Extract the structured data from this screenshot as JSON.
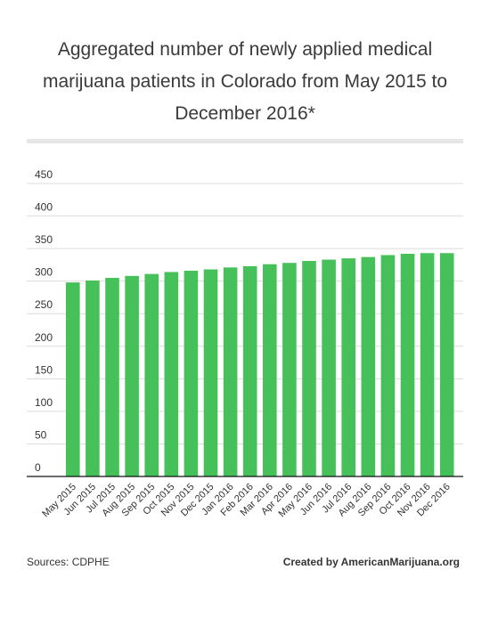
{
  "title": "Aggregated number of newly applied medical marijuana patients in Colorado from May 2015 to December 2016*",
  "footer": {
    "source": "Sources: CDPHE",
    "credit": "Created by AmericanMarijuana.org"
  },
  "colors": {
    "bar": "#46c159",
    "grid": "#dcdcdc",
    "axis": "#111111",
    "text": "#333333"
  },
  "chart_data": {
    "type": "bar",
    "categories": [
      "May 2015",
      "Jun 2015",
      "Jul 2015",
      "Aug 2015",
      "Sep 2015",
      "Oct 2015",
      "Nov 2015",
      "Dec 2015",
      "Jan 2016",
      "Feb 2016",
      "Mar 2016",
      "Apr 2016",
      "May 2016",
      "Jun 2016",
      "Jul 2016",
      "Aug 2016",
      "Sep 2016",
      "Oct 2016",
      "Nov 2016",
      "Dec 2016"
    ],
    "values": [
      298,
      301,
      305,
      308,
      311,
      314,
      316,
      318,
      321,
      323,
      326,
      328,
      331,
      333,
      335,
      337,
      340,
      342,
      343,
      343
    ],
    "ylim": [
      0,
      450
    ],
    "yticks": [
      0,
      50,
      100,
      150,
      200,
      250,
      300,
      350,
      400,
      450
    ],
    "grid": true,
    "legend": "none"
  }
}
